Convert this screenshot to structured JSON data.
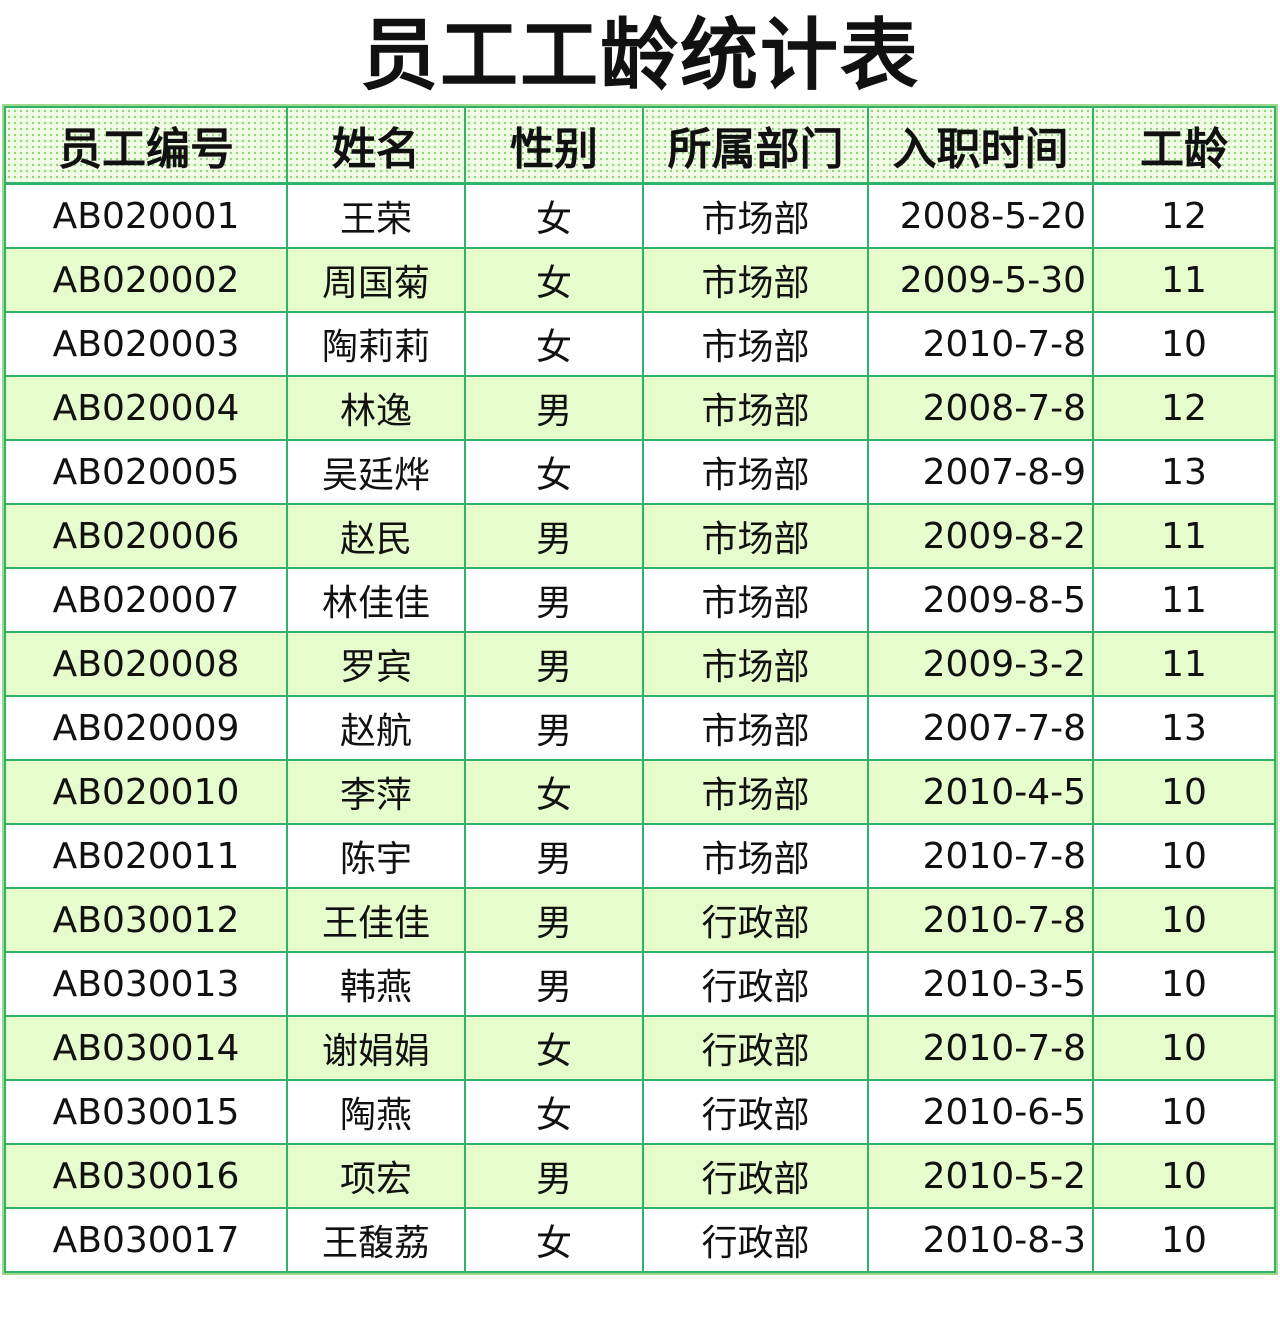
{
  "title": "员工工龄统计表",
  "columns": [
    "员工编号",
    "姓名",
    "性别",
    "所属部门",
    "入职时间",
    "工龄"
  ],
  "rows": [
    [
      "AB020001",
      "王荣",
      "女",
      "市场部",
      "2008-5-20",
      "12"
    ],
    [
      "AB020002",
      "周国菊",
      "女",
      "市场部",
      "2009-5-30",
      "11"
    ],
    [
      "AB020003",
      "陶莉莉",
      "女",
      "市场部",
      "2010-7-8",
      "10"
    ],
    [
      "AB020004",
      "林逸",
      "男",
      "市场部",
      "2008-7-8",
      "12"
    ],
    [
      "AB020005",
      "吴廷烨",
      "女",
      "市场部",
      "2007-8-9",
      "13"
    ],
    [
      "AB020006",
      "赵民",
      "男",
      "市场部",
      "2009-8-2",
      "11"
    ],
    [
      "AB020007",
      "林佳佳",
      "男",
      "市场部",
      "2009-8-5",
      "11"
    ],
    [
      "AB020008",
      "罗宾",
      "男",
      "市场部",
      "2009-3-2",
      "11"
    ],
    [
      "AB020009",
      "赵航",
      "男",
      "市场部",
      "2007-7-8",
      "13"
    ],
    [
      "AB020010",
      "李萍",
      "女",
      "市场部",
      "2010-4-5",
      "10"
    ],
    [
      "AB020011",
      "陈宇",
      "男",
      "市场部",
      "2010-7-8",
      "10"
    ],
    [
      "AB030012",
      "王佳佳",
      "男",
      "行政部",
      "2010-7-8",
      "10"
    ],
    [
      "AB030013",
      "韩燕",
      "男",
      "行政部",
      "2010-3-5",
      "10"
    ],
    [
      "AB030014",
      "谢娟娟",
      "女",
      "行政部",
      "2010-7-8",
      "10"
    ],
    [
      "AB030015",
      "陶燕",
      "女",
      "行政部",
      "2010-6-5",
      "10"
    ],
    [
      "AB030016",
      "项宏",
      "男",
      "行政部",
      "2010-5-2",
      "10"
    ],
    [
      "AB030017",
      "王馥荔",
      "女",
      "行政部",
      "2010-8-3",
      "10"
    ]
  ],
  "colors": {
    "grid_border": "#2fb36a",
    "outer_border": "#9fd88a",
    "band_fill": "#e6fccc",
    "header_fill": "#f2fbe6"
  }
}
